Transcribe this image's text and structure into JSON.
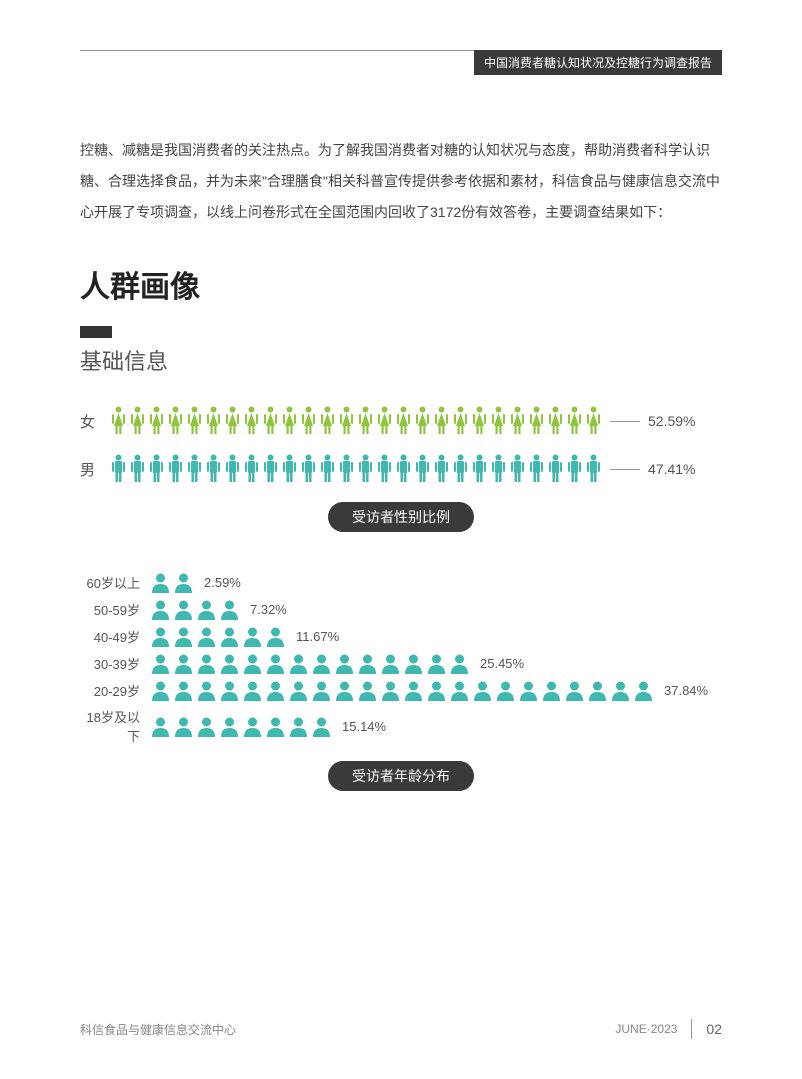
{
  "header": {
    "title": "中国消费者糖认知状况及控糖行为调查报告"
  },
  "intro": "控糖、减糖是我国消费者的关注热点。为了解我国消费者对糖的认知状况与态度，帮助消费者科学认识糖、合理选择食品，并为未来\"合理膳食\"相关科普宣传提供参考依据和素材，科信食品与健康信息交流中心开展了专项调查，以线上问卷形式在全国范围内回收了3172份有效答卷，主要调查结果如下：",
  "section_title": "人群画像",
  "subsection_title": "基础信息",
  "gender_chart": {
    "rows": [
      {
        "label": "女",
        "count": 26,
        "icon_type": "female",
        "color": "#8fc63f",
        "percent": "52.59%"
      },
      {
        "label": "男",
        "count": 26,
        "icon_type": "male",
        "color": "#3fb8af",
        "percent": "47.41%"
      }
    ],
    "caption": "受访者性别比例"
  },
  "age_chart": {
    "rows": [
      {
        "label": "60岁以上",
        "count": 2,
        "percent": "2.59%"
      },
      {
        "label": "50-59岁",
        "count": 4,
        "percent": "7.32%"
      },
      {
        "label": "40-49岁",
        "count": 6,
        "percent": "11.67%"
      },
      {
        "label": "30-39岁",
        "count": 14,
        "percent": "25.45%"
      },
      {
        "label": "20-29岁",
        "count": 22,
        "percent": "37.84%"
      },
      {
        "label": "18岁及以下",
        "count": 8,
        "percent": "15.14%"
      }
    ],
    "icon_color": "#3fb8af",
    "caption": "受访者年龄分布"
  },
  "footer": {
    "left": "科信食品与健康信息交流中心",
    "date": "JUNE·2023",
    "page": "02"
  }
}
